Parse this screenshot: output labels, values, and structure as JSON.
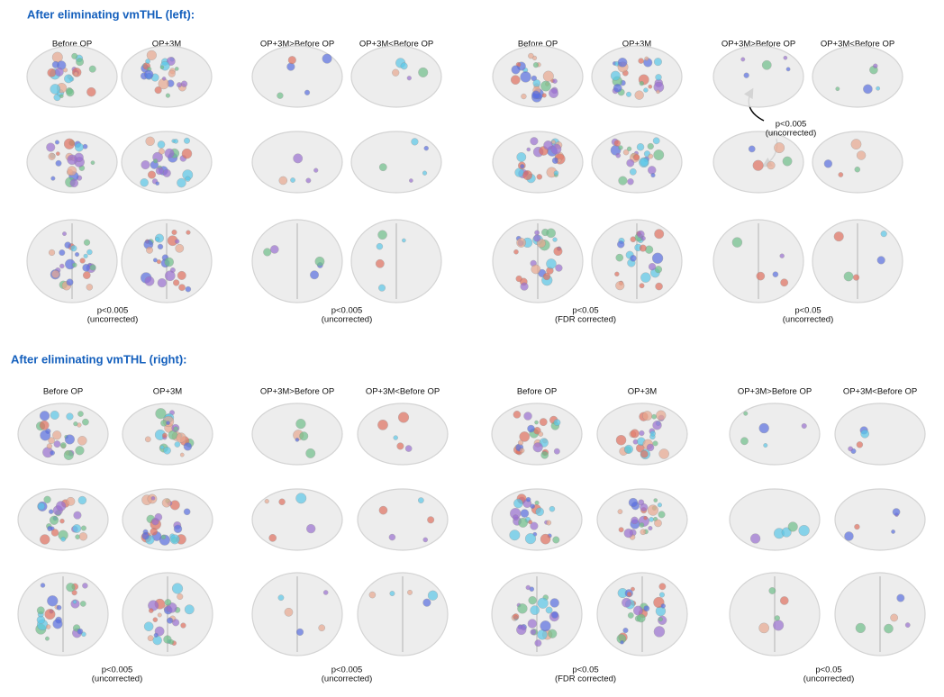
{
  "sections": [
    {
      "title": "After eliminating vmTHL (left):",
      "panels": [
        {
          "columns": [
            "Before OP",
            "OP+3M"
          ],
          "note": [
            "p<0.005",
            "(uncorrected)"
          ]
        },
        {
          "columns": [
            "OP+3M>Before OP",
            "OP+3M<Before OP"
          ],
          "note": [
            "p<0.005",
            "(uncorrected)"
          ]
        },
        {
          "columns": [
            "Before OP",
            "OP+3M"
          ],
          "note": [
            "p<0.05",
            "(FDR corrected)"
          ]
        },
        {
          "columns": [
            "OP+3M>Before OP",
            "OP+3M<Before OP"
          ],
          "note": [
            "p<0.05",
            "(uncorrected)"
          ]
        }
      ]
    },
    {
      "title": "After eliminating vmTHL (right):",
      "panels": [
        {
          "columns": [
            "Before OP",
            "OP+3M"
          ],
          "note": [
            "p<0.005",
            "(uncorrected)"
          ]
        },
        {
          "columns": [
            "OP+3M>Before OP",
            "OP+3M<Before OP"
          ],
          "note": [
            "p<0.005",
            "(uncorrected)"
          ]
        },
        {
          "columns": [
            "Before OP",
            "OP+3M"
          ],
          "note": [
            "p<0.05",
            "(FDR corrected)"
          ]
        },
        {
          "columns": [
            "OP+3M>Before OP",
            "OP+3M<Before OP"
          ],
          "note": [
            "p<0.05",
            "(uncorrected)"
          ]
        }
      ]
    }
  ],
  "annotation": [
    "p<0.005",
    "(uncorrected)"
  ]
}
